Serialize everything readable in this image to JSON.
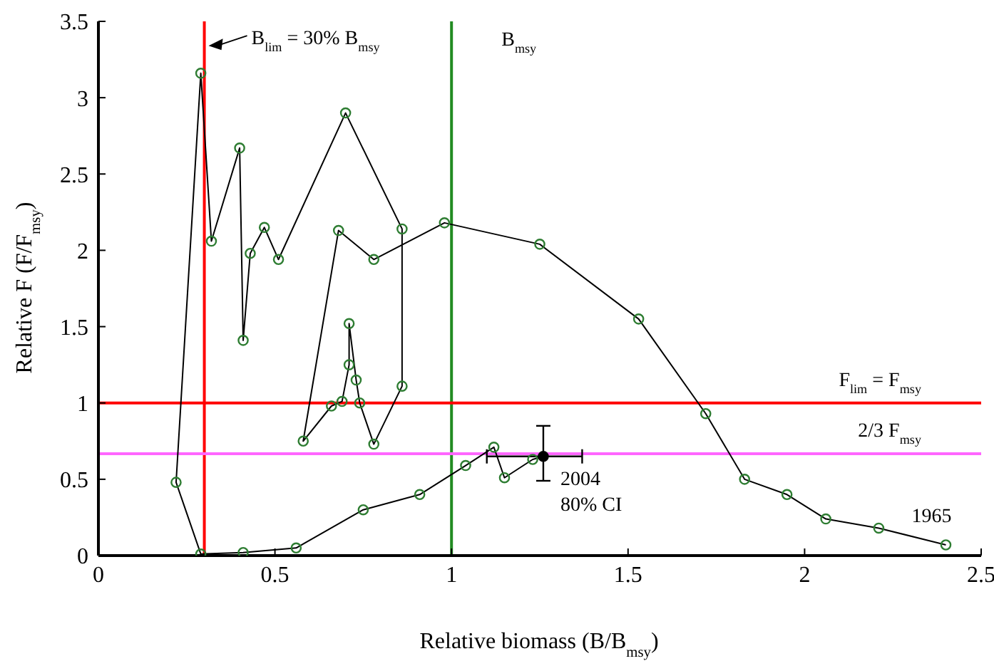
{
  "chart_data": {
    "type": "line",
    "xlabel": "Relative biomass (B/B$_{msy}$)",
    "ylabel": "Relative F  (F/F$_{msy}$)",
    "x": [
      2.4,
      2.21,
      2.06,
      1.95,
      1.83,
      1.72,
      1.53,
      1.25,
      0.98,
      0.78,
      0.68,
      0.58,
      0.66,
      0.69,
      0.71,
      0.71,
      0.73,
      0.74,
      0.78,
      0.86,
      0.86,
      0.7,
      0.51,
      0.47,
      0.43,
      0.41,
      0.4,
      0.32,
      0.29,
      0.22,
      0.29,
      0.41,
      0.56,
      0.75,
      0.91,
      1.04,
      1.12,
      1.15,
      1.23,
      1.26
    ],
    "series": [
      {
        "color": "#000000",
        "values": [
          0.07,
          0.18,
          0.24,
          0.4,
          0.5,
          0.93,
          1.55,
          2.04,
          2.18,
          1.94,
          2.13,
          0.75,
          0.98,
          1.01,
          1.25,
          1.52,
          1.15,
          1.0,
          0.73,
          1.11,
          2.14,
          2.9,
          1.94,
          2.15,
          1.98,
          1.41,
          2.67,
          2.06,
          3.16,
          0.48,
          0.01,
          0.02,
          0.05,
          0.3,
          0.4,
          0.59,
          0.71,
          0.51,
          0.63,
          0.65
        ],
        "errors": [
          null,
          null,
          null,
          null,
          null,
          null,
          null,
          null,
          null,
          null,
          null,
          null,
          null,
          null,
          null,
          null,
          null,
          null,
          null,
          null,
          null,
          null,
          null,
          null,
          null,
          null,
          null,
          null,
          null,
          null,
          null,
          null,
          null,
          null,
          null,
          null,
          null,
          null,
          null,
          [
            0.49,
            0.85
          ]
        ],
        "xerrors": [
          null,
          null,
          null,
          null,
          null,
          null,
          null,
          null,
          null,
          null,
          null,
          null,
          null,
          null,
          null,
          null,
          null,
          null,
          null,
          null,
          null,
          null,
          null,
          null,
          null,
          null,
          null,
          null,
          null,
          null,
          null,
          null,
          null,
          null,
          null,
          null,
          null,
          null,
          null,
          [
            1.1,
            1.37
          ]
        ]
      }
    ],
    "xlim": [
      0,
      2.5
    ],
    "xticks": [
      0,
      0.5,
      1,
      1.5,
      2,
      2.5
    ],
    "ylim": [
      0,
      3.5
    ],
    "yticks": [
      0,
      0.5,
      1,
      1.5,
      2,
      2.5,
      3,
      3.5
    ],
    "marker": "circle",
    "line_style": "solid",
    "ref_lines": [
      {
        "axis": "x",
        "value": 0.3,
        "color": "#ff0000"
      },
      {
        "axis": "x",
        "value": 1,
        "label": "B$_{msy}$",
        "color": "#228b22"
      },
      {
        "axis": "y",
        "value": 1,
        "label": "F$_{lim}$ = F$_{msy}$",
        "color": "#ff0000"
      },
      {
        "axis": "y",
        "value": 0.667,
        "label": "2/3 F$_{msy}$",
        "color": "#ff66ff"
      }
    ],
    "annotations": [
      {
        "text": "B$_{lim}$ = 30% B$_{msy}$",
        "x": 0.3,
        "y": 3.35
      },
      {
        "text": "2004",
        "x": 1.26,
        "y": 0.65
      },
      {
        "text": "80% CI",
        "x": 1.26,
        "y": 0.65
      },
      {
        "text": "1965",
        "x": 2.4,
        "y": 0.07
      }
    ]
  }
}
